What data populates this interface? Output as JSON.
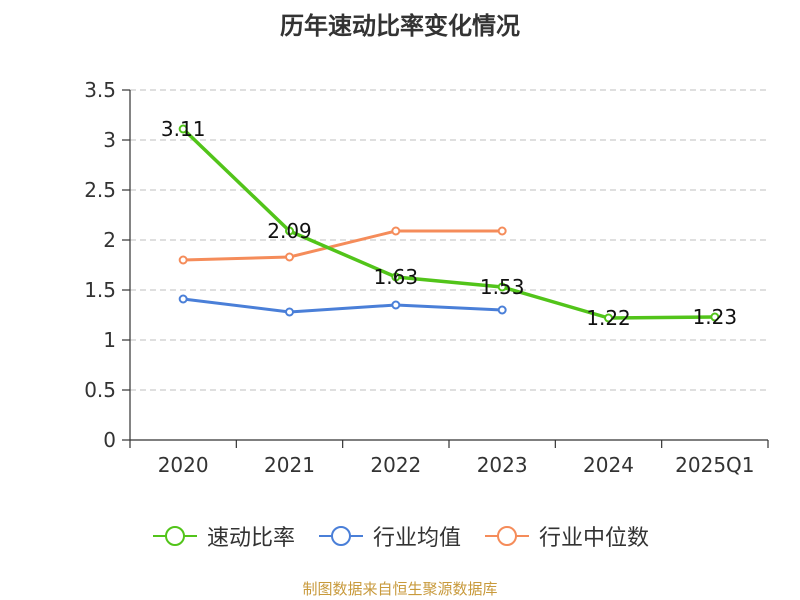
{
  "colors": {
    "speed_ratio": "#52c41a",
    "industry_avg": "#4a7fd8",
    "industry_median": "#f58c5a",
    "grid": "#cccccc",
    "axis": "#333333",
    "footer": "#c89a3c"
  },
  "footer_text": "制图数据来自恒生聚源数据库",
  "chart_data": {
    "type": "line",
    "title": "历年速动比率变化情况",
    "categories": [
      "2020",
      "2021",
      "2022",
      "2023",
      "2024",
      "2025Q1"
    ],
    "ylim": [
      0,
      3.5
    ],
    "yticks": [
      "0",
      "0.5",
      "1",
      "1.5",
      "2",
      "2.5",
      "3",
      "3.5"
    ],
    "grid": true,
    "legend_position": "bottom",
    "series": [
      {
        "name": "速动比率",
        "key": "speed_ratio",
        "values": [
          3.11,
          2.09,
          1.63,
          1.53,
          1.22,
          1.23
        ],
        "labels": [
          "3.11",
          "2.09",
          "1.63",
          "1.53",
          "1.22",
          "1.23"
        ]
      },
      {
        "name": "行业均值",
        "key": "industry_avg",
        "values": [
          1.41,
          1.28,
          1.35,
          1.3,
          null,
          null
        ]
      },
      {
        "name": "行业中位数",
        "key": "industry_median",
        "values": [
          1.8,
          1.83,
          2.09,
          2.09,
          null,
          null
        ]
      }
    ]
  }
}
